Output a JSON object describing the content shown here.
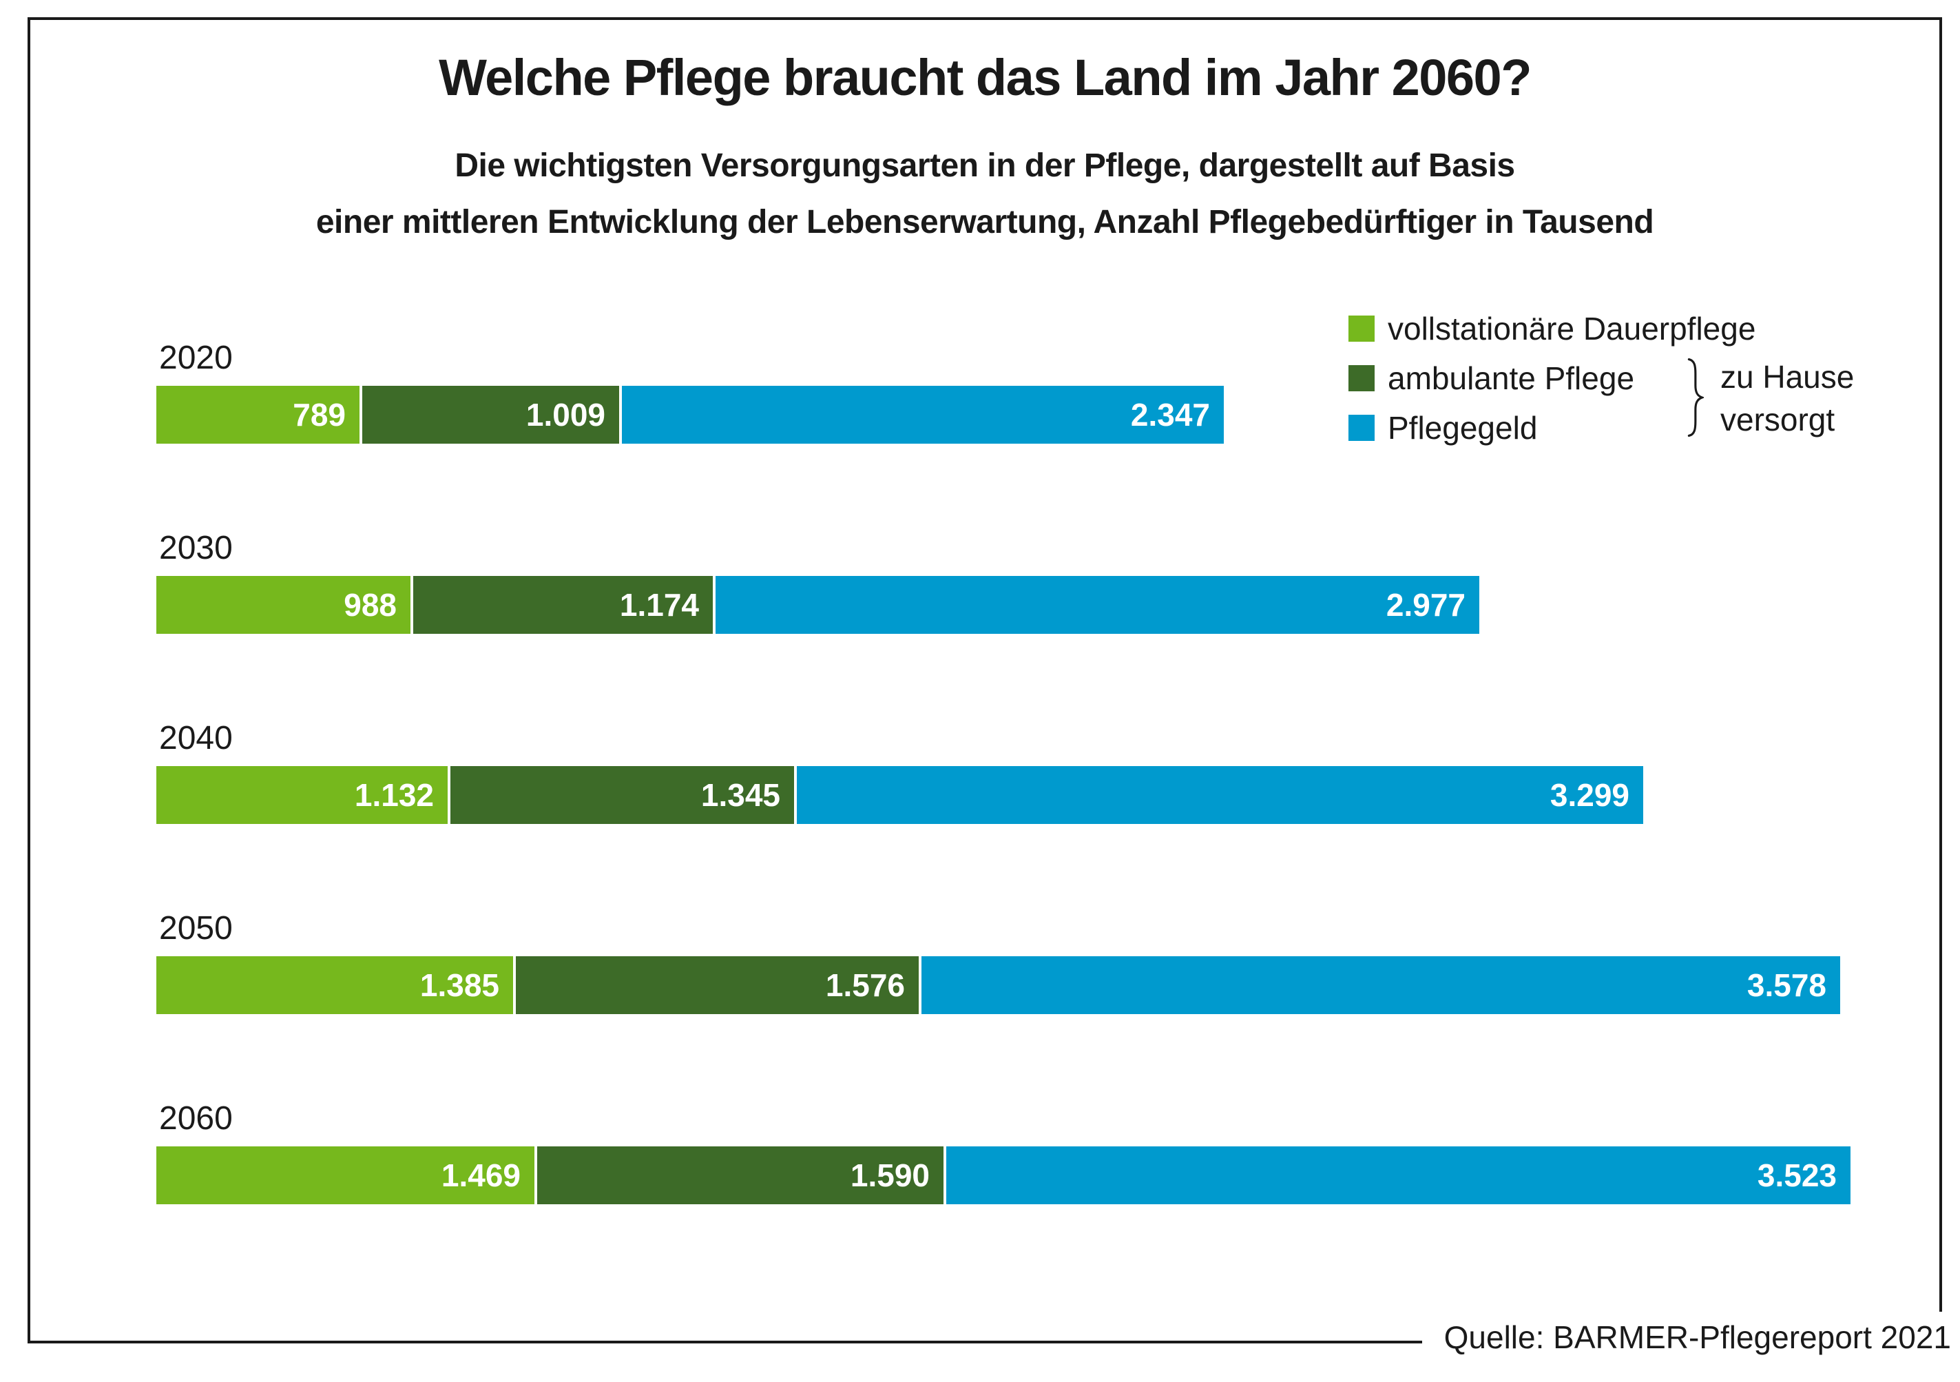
{
  "title": "Welche Pflege braucht das Land im Jahr 2060?",
  "subtitle": {
    "line1": "Die wichtigsten Versorgungsarten in der Pflege, dargestellt auf Basis",
    "line2": "einer mittleren Entwicklung der Lebenserwartung, Anzahl Pflegebedürftiger in Tausend"
  },
  "legend": {
    "annotation": {
      "line1": "zu Hause",
      "line2": "versorgt"
    }
  },
  "source": "Quelle: BARMER-Pflegereport 2021",
  "colors": {
    "text": "#1a1a1a",
    "frame": "#1a1a1a",
    "background": "#ffffff"
  },
  "chart_data": {
    "type": "bar",
    "orientation": "horizontal",
    "stacked": true,
    "title": "Welche Pflege braucht das Land im Jahr 2060?",
    "unit": "Anzahl Pflegebedürftiger in Tausend",
    "categories": [
      "2020",
      "2030",
      "2040",
      "2050",
      "2060"
    ],
    "series": [
      {
        "name": "vollstationäre Dauerpflege",
        "color": "#76B81D",
        "values": [
          789,
          988,
          1132,
          1385,
          1469
        ],
        "labels": [
          "789",
          "988",
          "1.132",
          "1.385",
          "1.469"
        ]
      },
      {
        "name": "ambulante Pflege",
        "color": "#3D6B28",
        "values": [
          1009,
          1174,
          1345,
          1576,
          1590
        ],
        "labels": [
          "1.009",
          "1.174",
          "1.345",
          "1.576",
          "1.590"
        ]
      },
      {
        "name": "Pflegegeld",
        "color": "#009ACE",
        "values": [
          2347,
          2977,
          3299,
          3578,
          3523
        ],
        "labels": [
          "2.347",
          "2.977",
          "3.299",
          "3.578",
          "3.523"
        ]
      }
    ],
    "totals": [
      4145,
      5139,
      5776,
      6539,
      6582
    ],
    "xmax": 6582,
    "value_labels": "inside-right",
    "legend_position": "top-right",
    "grid": false,
    "group_annotation": "zu Hause versorgt (ambulante Pflege + Pflegegeld)"
  }
}
